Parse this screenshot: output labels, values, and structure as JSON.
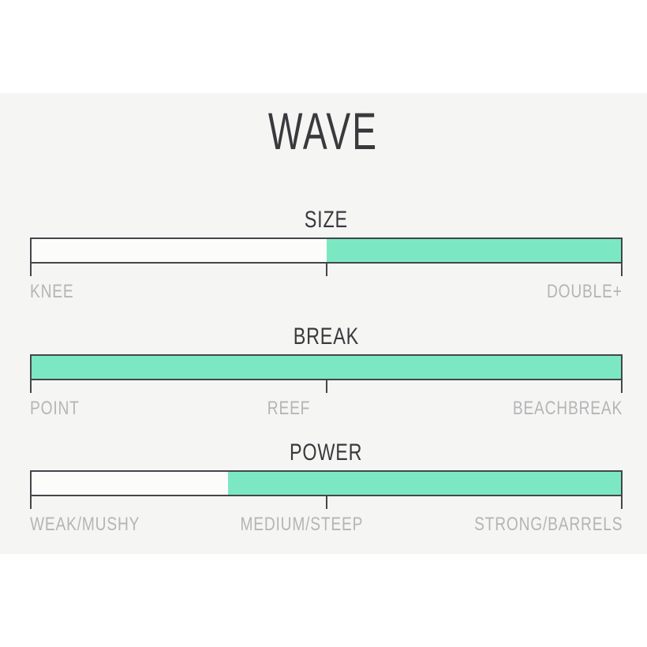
{
  "page": {
    "title": "WAVE"
  },
  "colors": {
    "page_bg": "#ffffff",
    "panel_bg": "#f5f5f4",
    "fill_green": "#7ce8c3",
    "track_bg": "#fcfcfb",
    "line_dark": "#42474a",
    "title_text": "#3a3a3e",
    "label_text": "#b5b5b7"
  },
  "chart_data": {
    "type": "bar",
    "title": "WAVE",
    "subtitle": "",
    "orientation": "horizontal",
    "ticks_pct": [
      0,
      50,
      100
    ],
    "grid": false,
    "legend": false,
    "tracks": [
      {
        "name": "SIZE",
        "fill_start_pct": 50,
        "fill_end_pct": 100,
        "scale_labels": [
          "KNEE",
          "",
          "DOUBLE+"
        ]
      },
      {
        "name": "BREAK",
        "fill_start_pct": 0,
        "fill_end_pct": 100,
        "scale_labels": [
          "POINT",
          "REEF",
          "BEACHBREAK"
        ]
      },
      {
        "name": "POWER",
        "fill_start_pct": 33.3,
        "fill_end_pct": 100,
        "scale_labels": [
          "WEAK/MUSHY",
          "MEDIUM/STEEP",
          "STRONG/BARRELS"
        ]
      }
    ]
  }
}
